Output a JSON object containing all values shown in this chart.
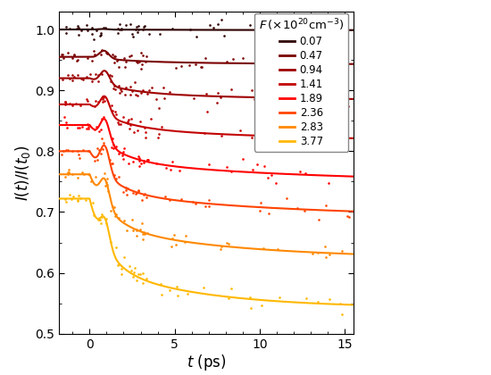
{
  "series": [
    {
      "label": "0.07",
      "color": "#2E0000",
      "baseline": 1.0,
      "peak_amp": 0.001,
      "peak_time": 0.8,
      "peak_sigma": 0.25,
      "long_val": 0.998,
      "tau_fast": 8.0,
      "tau_slow": 80.0,
      "a_fast": 0.5
    },
    {
      "label": "0.47",
      "color": "#7A0000",
      "baseline": 0.955,
      "peak_amp": 0.013,
      "peak_time": 0.85,
      "peak_sigma": 0.28,
      "long_val": 0.94,
      "tau_fast": 2.5,
      "tau_slow": 25.0,
      "a_fast": 0.6
    },
    {
      "label": "0.94",
      "color": "#9E0000",
      "baseline": 0.92,
      "peak_amp": 0.022,
      "peak_time": 0.9,
      "peak_sigma": 0.28,
      "long_val": 0.878,
      "tau_fast": 2.0,
      "tau_slow": 20.0,
      "a_fast": 0.6
    },
    {
      "label": "1.41",
      "color": "#C20000",
      "baseline": 0.877,
      "peak_amp": 0.03,
      "peak_time": 0.9,
      "peak_sigma": 0.28,
      "long_val": 0.812,
      "tau_fast": 1.8,
      "tau_slow": 15.0,
      "a_fast": 0.6
    },
    {
      "label": "1.89",
      "color": "#FF0000",
      "baseline": 0.843,
      "peak_amp": 0.038,
      "peak_time": 0.9,
      "peak_sigma": 0.28,
      "long_val": 0.748,
      "tau_fast": 1.5,
      "tau_slow": 12.0,
      "a_fast": 0.6
    },
    {
      "label": "2.36",
      "color": "#FF4400",
      "baseline": 0.8,
      "peak_amp": 0.045,
      "peak_time": 0.9,
      "peak_sigma": 0.28,
      "long_val": 0.692,
      "tau_fast": 1.3,
      "tau_slow": 10.0,
      "a_fast": 0.6
    },
    {
      "label": "2.83",
      "color": "#FF8800",
      "baseline": 0.762,
      "peak_amp": 0.042,
      "peak_time": 0.9,
      "peak_sigma": 0.28,
      "long_val": 0.623,
      "tau_fast": 1.2,
      "tau_slow": 8.0,
      "a_fast": 0.6
    },
    {
      "label": "3.77",
      "color": "#FFB800",
      "baseline": 0.722,
      "peak_amp": 0.042,
      "peak_time": 0.9,
      "peak_sigma": 0.28,
      "long_val": 0.542,
      "tau_fast": 1.0,
      "tau_slow": 6.0,
      "a_fast": 0.6
    }
  ],
  "xlim": [
    -1.8,
    15.5
  ],
  "ylim": [
    0.5,
    1.03
  ],
  "xlabel": "t  (ps)",
  "xticks": [
    0,
    5,
    10,
    15
  ],
  "yticks": [
    0.5,
    0.6,
    0.7,
    0.8,
    0.9,
    1.0
  ],
  "noise_pre": 0.004,
  "noise_post_early": 0.007,
  "noise_post_late": 0.009
}
